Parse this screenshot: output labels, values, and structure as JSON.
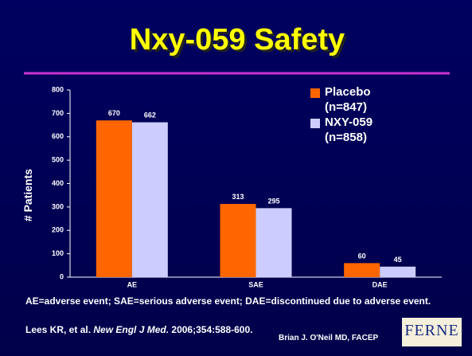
{
  "chart_data": {
    "type": "bar",
    "title": "Nxy-059 Safety",
    "y_label": "# Patients",
    "categories": [
      "AE",
      "SAE",
      "DAE"
    ],
    "series": [
      {
        "name": "Placebo (n=847)",
        "color": "#ff6600",
        "values": [
          670,
          313,
          60
        ]
      },
      {
        "name": "NXY-059 (n=858)",
        "color": "#ccccff",
        "values": [
          662,
          295,
          45
        ]
      }
    ],
    "ylim": [
      0,
      800
    ],
    "yticks": [
      0,
      100,
      200,
      300,
      400,
      500,
      600,
      700,
      800
    ],
    "legend": "top-right"
  },
  "footnote": "AE=adverse event; SAE=serious adverse event; DAE=discontinued due to adverse event.",
  "citation": {
    "authors": "Lees KR, et al.",
    "journal": "New Engl J Med.",
    "ref": "2006;354:588-600."
  },
  "author": "Brian J. O'Neil MD, FACEP",
  "logo": "FERNE"
}
